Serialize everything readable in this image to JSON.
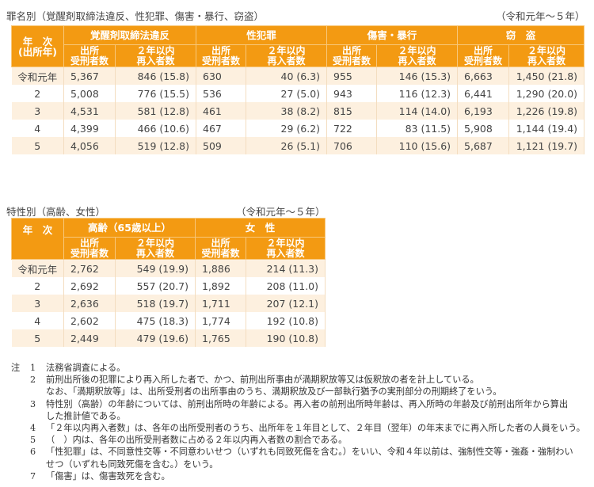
{
  "table1": {
    "title": "罪名別（覚醒剤取締法違反、性犯罪、傷害・暴行、窃盗）",
    "period": "（令和元年～５年）",
    "year_header": "年　次\n(出所年)",
    "year_header_line1": "年　次",
    "year_header_line2": "(出所年)",
    "groups": [
      "覚醒剤取締法違反",
      "性犯罪",
      "傷害・暴行",
      "窃　盗"
    ],
    "sub_headers": {
      "released_l1": "出所",
      "released_l2": "受刑者数",
      "reentry_l1": "２年以内",
      "reentry_l2": "再入者数"
    },
    "rows": [
      {
        "year": "令和元年",
        "c": [
          "5,367",
          "846 (15.8)",
          "630",
          "40 (6.3)",
          "955",
          "146 (15.3)",
          "6,663",
          "1,450 (21.8)"
        ]
      },
      {
        "year": "2",
        "c": [
          "5,008",
          "776 (15.5)",
          "536",
          "27 (5.0)",
          "943",
          "116 (12.3)",
          "6,441",
          "1,290 (20.0)"
        ]
      },
      {
        "year": "3",
        "c": [
          "4,531",
          "581 (12.8)",
          "461",
          "38 (8.2)",
          "815",
          "114 (14.0)",
          "6,193",
          "1,226 (19.8)"
        ]
      },
      {
        "year": "4",
        "c": [
          "4,399",
          "466 (10.6)",
          "467",
          "29 (6.2)",
          "722",
          "83 (11.5)",
          "5,908",
          "1,144 (19.4)"
        ]
      },
      {
        "year": "5",
        "c": [
          "4,056",
          "519 (12.8)",
          "509",
          "26 (5.1)",
          "706",
          "110 (15.6)",
          "5,687",
          "1,121 (19.7)"
        ]
      }
    ]
  },
  "table2": {
    "title": "特性別（高齢、女性）",
    "period": "（令和元年～５年）",
    "year_header": "年　次",
    "groups": [
      "高齢（65歳以上）",
      "女　性"
    ],
    "rows": [
      {
        "year": "令和元年",
        "c": [
          "2,762",
          "549 (19.9)",
          "1,886",
          "214 (11.3)"
        ]
      },
      {
        "year": "2",
        "c": [
          "2,692",
          "557 (20.7)",
          "1,892",
          "208 (11.0)"
        ]
      },
      {
        "year": "3",
        "c": [
          "2,636",
          "518 (19.7)",
          "1,711",
          "207 (12.1)"
        ]
      },
      {
        "year": "4",
        "c": [
          "2,602",
          "475 (18.3)",
          "1,774",
          "192 (10.8)"
        ]
      },
      {
        "year": "5",
        "c": [
          "2,449",
          "479 (19.6)",
          "1,765",
          "190 (10.8)"
        ]
      }
    ]
  },
  "notes": {
    "label": "注",
    "items": [
      {
        "num": "1",
        "lines": [
          "法務省調査による。"
        ]
      },
      {
        "num": "2",
        "lines": [
          "前刑出所後の犯罪により再入所した者で、かつ、前刑出所事由が満期釈放等又は仮釈放の者を計上している。",
          "なお、「満期釈放等」は、出所受刑者の出所事由のうち、満期釈放及び一部執行猶予の実刑部分の刑期終了をいう。"
        ]
      },
      {
        "num": "3",
        "lines": [
          "特性別（高齢）の年齢については、前刑出所時の年齢による。再入者の前刑出所時年齢は、再入所時の年齢及び前刑出所年から算出",
          "した推計値である。"
        ]
      },
      {
        "num": "4",
        "lines": [
          "「２年以内再入者数」は、各年の出所受刑者のうち、出所年を１年目として、２年目（翌年）の年末までに再入所した者の人員をいう。"
        ]
      },
      {
        "num": "5",
        "lines": [
          "（　）内は、各年の出所受刑者数に占める２年以内再入者数の割合である。"
        ]
      },
      {
        "num": "6",
        "lines": [
          "「性犯罪」は、不同意性交等・不同意わいせつ（いずれも同致死傷を含む。）をいい、令和４年以前は、強制性交等・強姦・強制わい",
          "せつ（いずれも同致死傷を含む。）をいう。"
        ]
      },
      {
        "num": "7",
        "lines": [
          "「傷害」は、傷害致死を含む。"
        ]
      }
    ]
  },
  "colors": {
    "header": "#F39A12",
    "row_odd": "#FDF0DF",
    "row_even": "#FFFFFF"
  }
}
